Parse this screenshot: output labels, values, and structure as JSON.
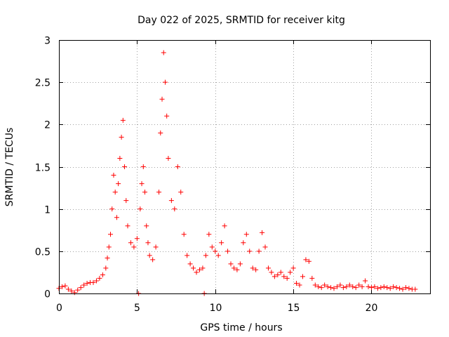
{
  "chart_data": {
    "type": "scatter",
    "title": "Day 022 of 2025, SRMTID for receiver kitg",
    "xlabel": "GPS time / hours",
    "ylabel": "SRMTID / TECUs",
    "xlim": [
      0,
      23.75
    ],
    "ylim": [
      0,
      3
    ],
    "xticks": [
      0,
      5,
      10,
      15,
      20
    ],
    "yticks": [
      0,
      0.5,
      1,
      1.5,
      2,
      2.5,
      3
    ],
    "xtick_labels": [
      "0",
      "5",
      "10",
      "15",
      "20"
    ],
    "ytick_labels": [
      "0",
      "0.5",
      "1",
      "1.5",
      "2",
      "2.5",
      "3"
    ],
    "grid": true,
    "marker": "+",
    "series": [
      {
        "name": "SRMTID",
        "color": "#ff0000",
        "points": [
          [
            0.0,
            0.06
          ],
          [
            0.2,
            0.08
          ],
          [
            0.4,
            0.09
          ],
          [
            0.6,
            0.05
          ],
          [
            0.8,
            0.03
          ],
          [
            1.0,
            0.01
          ],
          [
            1.2,
            0.04
          ],
          [
            1.4,
            0.07
          ],
          [
            1.6,
            0.1
          ],
          [
            1.8,
            0.12
          ],
          [
            2.0,
            0.13
          ],
          [
            2.2,
            0.13
          ],
          [
            2.4,
            0.15
          ],
          [
            2.6,
            0.18
          ],
          [
            2.8,
            0.22
          ],
          [
            3.0,
            0.3
          ],
          [
            3.1,
            0.42
          ],
          [
            3.2,
            0.55
          ],
          [
            3.3,
            0.7
          ],
          [
            3.4,
            1.0
          ],
          [
            3.5,
            1.4
          ],
          [
            3.6,
            1.2
          ],
          [
            3.7,
            0.9
          ],
          [
            3.8,
            1.3
          ],
          [
            3.9,
            1.6
          ],
          [
            4.0,
            1.85
          ],
          [
            4.1,
            2.05
          ],
          [
            4.2,
            1.5
          ],
          [
            4.3,
            1.1
          ],
          [
            4.4,
            0.8
          ],
          [
            4.6,
            0.6
          ],
          [
            4.8,
            0.55
          ],
          [
            5.0,
            0.65
          ],
          [
            5.2,
            1.0
          ],
          [
            5.3,
            1.3
          ],
          [
            5.4,
            1.5
          ],
          [
            5.5,
            1.2
          ],
          [
            5.6,
            0.8
          ],
          [
            5.7,
            0.6
          ],
          [
            5.8,
            0.45
          ],
          [
            6.0,
            0.4
          ],
          [
            6.2,
            0.55
          ],
          [
            6.4,
            1.2
          ],
          [
            6.5,
            1.9
          ],
          [
            6.6,
            2.3
          ],
          [
            6.7,
            2.85
          ],
          [
            6.8,
            2.5
          ],
          [
            6.9,
            2.1
          ],
          [
            7.0,
            1.6
          ],
          [
            7.2,
            1.1
          ],
          [
            7.4,
            1.0
          ],
          [
            7.6,
            1.5
          ],
          [
            7.8,
            1.2
          ],
          [
            8.0,
            0.7
          ],
          [
            8.2,
            0.45
          ],
          [
            8.4,
            0.35
          ],
          [
            8.6,
            0.3
          ],
          [
            8.8,
            0.25
          ],
          [
            9.0,
            0.28
          ],
          [
            9.2,
            0.3
          ],
          [
            9.4,
            0.45
          ],
          [
            9.6,
            0.7
          ],
          [
            9.8,
            0.55
          ],
          [
            10.0,
            0.5
          ],
          [
            10.2,
            0.45
          ],
          [
            10.4,
            0.6
          ],
          [
            10.6,
            0.8
          ],
          [
            10.8,
            0.5
          ],
          [
            11.0,
            0.35
          ],
          [
            11.2,
            0.3
          ],
          [
            11.4,
            0.28
          ],
          [
            11.6,
            0.35
          ],
          [
            11.8,
            0.6
          ],
          [
            12.0,
            0.7
          ],
          [
            12.2,
            0.5
          ],
          [
            12.4,
            0.3
          ],
          [
            12.6,
            0.28
          ],
          [
            12.8,
            0.5
          ],
          [
            13.0,
            0.72
          ],
          [
            13.2,
            0.55
          ],
          [
            13.4,
            0.3
          ],
          [
            13.6,
            0.25
          ],
          [
            13.8,
            0.2
          ],
          [
            14.0,
            0.22
          ],
          [
            14.2,
            0.25
          ],
          [
            14.4,
            0.2
          ],
          [
            14.6,
            0.18
          ],
          [
            14.8,
            0.25
          ],
          [
            15.0,
            0.3
          ],
          [
            15.2,
            0.12
          ],
          [
            15.4,
            0.1
          ],
          [
            15.6,
            0.2
          ],
          [
            15.8,
            0.4
          ],
          [
            16.0,
            0.38
          ],
          [
            16.2,
            0.18
          ],
          [
            16.4,
            0.1
          ],
          [
            16.6,
            0.08
          ],
          [
            16.8,
            0.07
          ],
          [
            17.0,
            0.1
          ],
          [
            17.2,
            0.08
          ],
          [
            17.4,
            0.07
          ],
          [
            17.6,
            0.06
          ],
          [
            17.8,
            0.08
          ],
          [
            18.0,
            0.1
          ],
          [
            18.2,
            0.07
          ],
          [
            18.4,
            0.08
          ],
          [
            18.6,
            0.1
          ],
          [
            18.8,
            0.08
          ],
          [
            19.0,
            0.07
          ],
          [
            19.2,
            0.1
          ],
          [
            19.4,
            0.08
          ],
          [
            19.6,
            0.15
          ],
          [
            19.8,
            0.08
          ],
          [
            20.0,
            0.07
          ],
          [
            20.2,
            0.08
          ],
          [
            20.4,
            0.06
          ],
          [
            20.6,
            0.07
          ],
          [
            20.8,
            0.08
          ],
          [
            21.0,
            0.07
          ],
          [
            21.2,
            0.06
          ],
          [
            21.4,
            0.08
          ],
          [
            21.6,
            0.07
          ],
          [
            21.8,
            0.06
          ],
          [
            22.0,
            0.05
          ],
          [
            22.2,
            0.07
          ],
          [
            22.4,
            0.06
          ],
          [
            22.6,
            0.05
          ],
          [
            22.8,
            0.05
          ],
          [
            5.1,
            0.0
          ],
          [
            9.3,
            0.0
          ]
        ]
      }
    ]
  }
}
